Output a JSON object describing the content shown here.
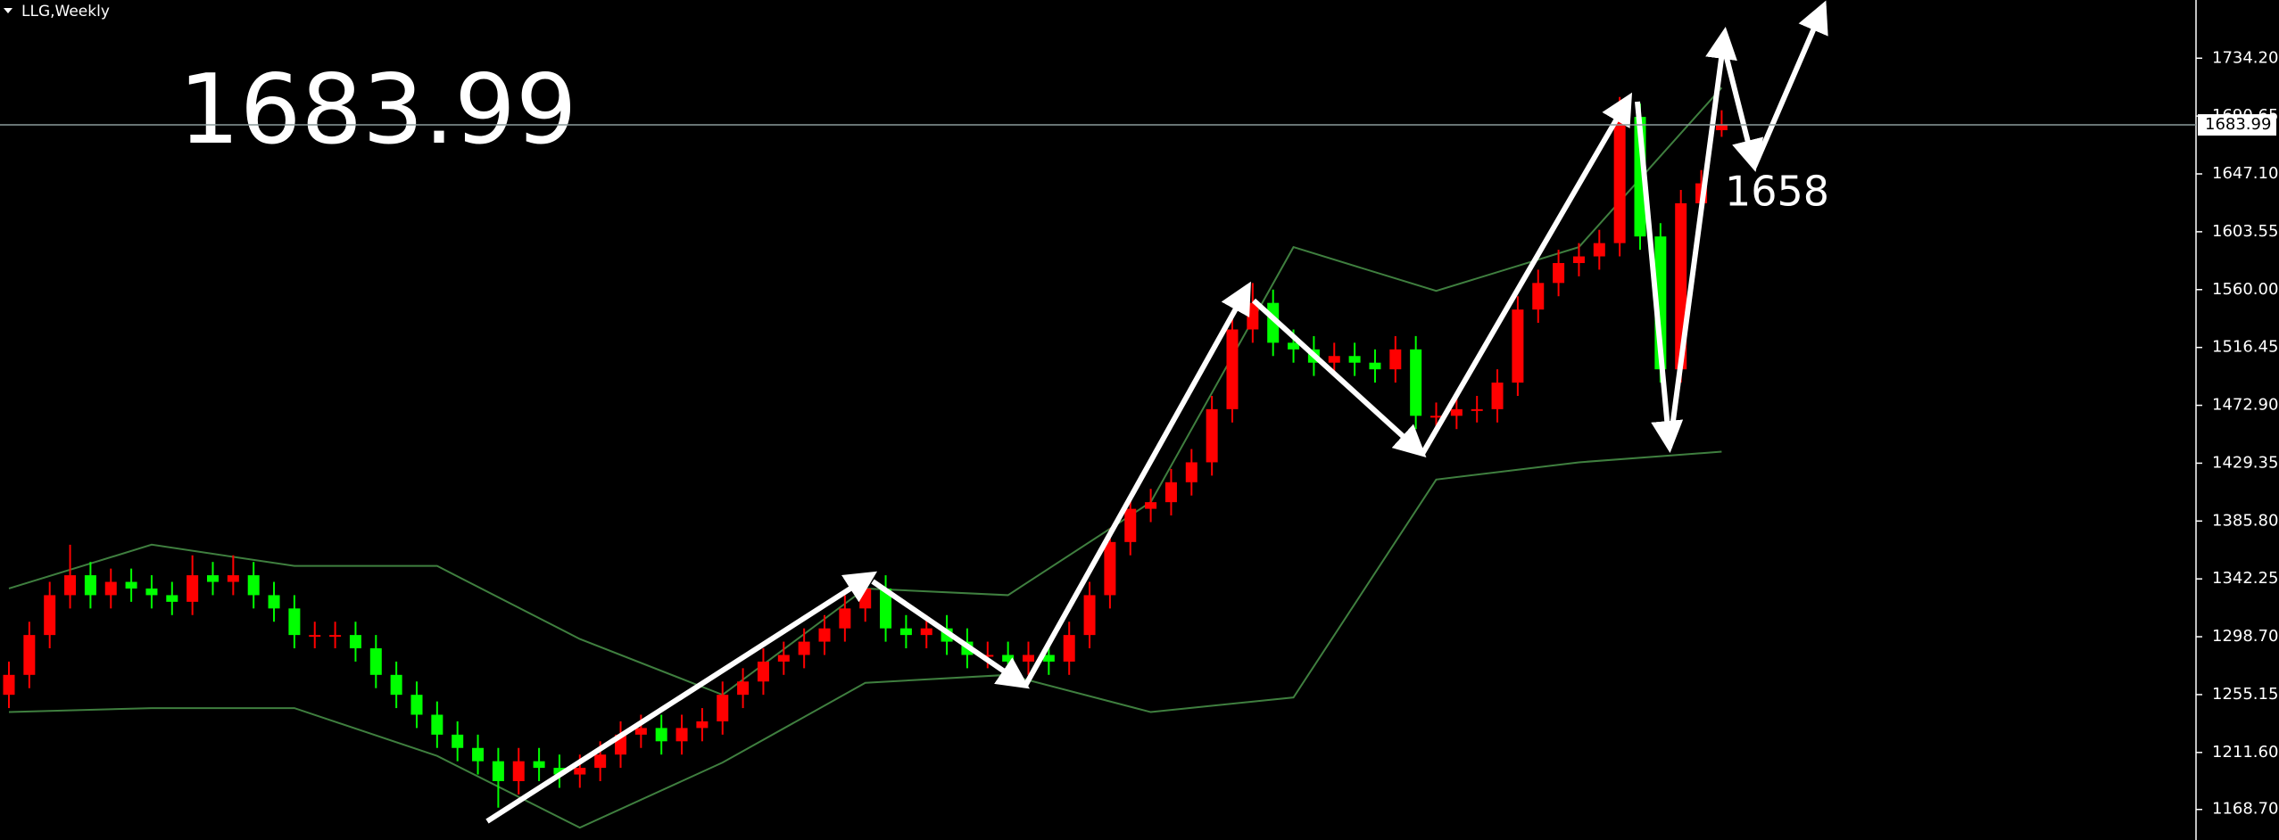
{
  "chart_data": {
    "type": "candlestick",
    "title": "LLG,Weekly",
    "big_price": 1683.99,
    "current_price": 1683.99,
    "annotation": 1658,
    "ylim": [
      1145.7,
      1778.0
    ],
    "yticks": [
      {
        "value": 1168.7,
        "label": "1168.70"
      },
      {
        "value": 1211.6,
        "label": "1211.60"
      },
      {
        "value": 1255.15,
        "label": "1255.15"
      },
      {
        "value": 1298.7,
        "label": "1298.70"
      },
      {
        "value": 1342.25,
        "label": "1342.25"
      },
      {
        "value": 1385.8,
        "label": "1385.80"
      },
      {
        "value": 1429.35,
        "label": "1429.35"
      },
      {
        "value": 1472.9,
        "label": "1472.90"
      },
      {
        "value": 1516.45,
        "label": "1516.45"
      },
      {
        "value": 1560,
        "label": "1560.00"
      },
      {
        "value": 1603.55,
        "label": "1603.55"
      },
      {
        "value": 1647.1,
        "label": "1647.10"
      },
      {
        "value": 1690.65,
        "label": "1690.65"
      },
      {
        "value": 1734.2,
        "label": "1734.20"
      }
    ],
    "up_color": "#ff0000",
    "down_color": "#00ff00",
    "open": [
      1255,
      1270,
      1300,
      1330,
      1345,
      1330,
      1340,
      1335,
      1330,
      1325,
      1345,
      1340,
      1345,
      1330,
      1320,
      1300,
      1300,
      1300,
      1290,
      1270,
      1255,
      1240,
      1225,
      1215,
      1205,
      1190,
      1205,
      1200,
      1195,
      1200,
      1210,
      1225,
      1230,
      1220,
      1230,
      1235,
      1255,
      1265,
      1280,
      1285,
      1295,
      1305,
      1320,
      1335,
      1305,
      1300,
      1305,
      1295,
      1285,
      1285,
      1280,
      1285,
      1280,
      1300,
      1330,
      1370,
      1395,
      1400,
      1415,
      1430,
      1470,
      1530,
      1550,
      1520,
      1515,
      1505,
      1510,
      1505,
      1500,
      1515,
      1465,
      1465,
      1470,
      1470,
      1490,
      1545,
      1565,
      1580,
      1585,
      1595,
      1690,
      1600,
      1500,
      1625,
      1680
    ],
    "high": [
      1280,
      1310,
      1340,
      1368,
      1355,
      1350,
      1350,
      1345,
      1340,
      1360,
      1355,
      1360,
      1355,
      1340,
      1330,
      1310,
      1310,
      1310,
      1300,
      1280,
      1265,
      1250,
      1235,
      1225,
      1215,
      1215,
      1215,
      1210,
      1210,
      1220,
      1235,
      1240,
      1240,
      1240,
      1245,
      1265,
      1275,
      1290,
      1295,
      1305,
      1315,
      1330,
      1345,
      1345,
      1315,
      1315,
      1315,
      1305,
      1295,
      1295,
      1295,
      1295,
      1310,
      1340,
      1380,
      1405,
      1410,
      1425,
      1440,
      1480,
      1540,
      1565,
      1560,
      1530,
      1525,
      1520,
      1520,
      1515,
      1525,
      1525,
      1475,
      1480,
      1480,
      1500,
      1555,
      1575,
      1590,
      1595,
      1605,
      1705,
      1700,
      1610,
      1635,
      1650,
      1695
    ],
    "low": [
      1245,
      1260,
      1290,
      1320,
      1320,
      1320,
      1325,
      1320,
      1315,
      1315,
      1330,
      1330,
      1320,
      1310,
      1290,
      1290,
      1290,
      1280,
      1260,
      1245,
      1230,
      1215,
      1205,
      1195,
      1170,
      1180,
      1190,
      1185,
      1185,
      1190,
      1200,
      1215,
      1210,
      1210,
      1220,
      1225,
      1245,
      1255,
      1270,
      1275,
      1285,
      1295,
      1310,
      1295,
      1290,
      1290,
      1285,
      1275,
      1275,
      1270,
      1270,
      1270,
      1270,
      1290,
      1320,
      1360,
      1385,
      1390,
      1405,
      1420,
      1460,
      1520,
      1510,
      1505,
      1495,
      1495,
      1495,
      1490,
      1490,
      1455,
      1455,
      1455,
      1460,
      1460,
      1480,
      1535,
      1555,
      1570,
      1575,
      1585,
      1590,
      1490,
      1490,
      1615,
      1675
    ],
    "close": [
      1270,
      1300,
      1330,
      1345,
      1330,
      1340,
      1335,
      1330,
      1325,
      1345,
      1340,
      1345,
      1330,
      1320,
      1300,
      1300,
      1300,
      1290,
      1270,
      1255,
      1240,
      1225,
      1215,
      1205,
      1190,
      1205,
      1200,
      1195,
      1200,
      1210,
      1225,
      1230,
      1220,
      1230,
      1235,
      1255,
      1265,
      1280,
      1285,
      1295,
      1305,
      1320,
      1335,
      1305,
      1300,
      1305,
      1295,
      1285,
      1285,
      1280,
      1285,
      1280,
      1300,
      1330,
      1370,
      1395,
      1400,
      1415,
      1430,
      1470,
      1530,
      1550,
      1520,
      1515,
      1505,
      1510,
      1505,
      1500,
      1515,
      1465,
      1465,
      1470,
      1470,
      1490,
      1545,
      1565,
      1580,
      1585,
      1595,
      1690,
      1600,
      1500,
      1625,
      1640,
      1683.99
    ],
    "bands": {
      "color": "#3f7f3f",
      "x": [
        0,
        7,
        14,
        21,
        28,
        35,
        42,
        49,
        56,
        63,
        70,
        77,
        84
      ],
      "upper": [
        1335,
        1368,
        1352,
        1352,
        1297,
        1255,
        1335,
        1330,
        1400,
        1592,
        1559,
        1592,
        1712
      ],
      "lower": [
        1242,
        1245,
        1245,
        1209,
        1155,
        1204,
        1264,
        1270,
        1242,
        1253,
        1417,
        1430,
        1438
      ]
    }
  }
}
